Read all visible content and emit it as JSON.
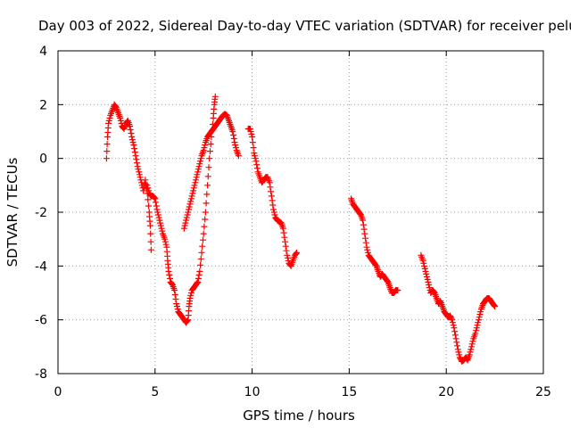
{
  "chart_data": {
    "type": "scatter",
    "title": "Day 003 of 2022, Sidereal Day-to-day VTEC variation (SDTVAR) for receiver pelu",
    "xlabel": "GPS time / hours",
    "ylabel": "SDTVAR / TECUs",
    "xlim": [
      0,
      25
    ],
    "ylim": [
      -8,
      4
    ],
    "xticks": [
      0,
      5,
      10,
      15,
      20,
      25
    ],
    "yticks": [
      -8,
      -6,
      -4,
      -2,
      0,
      2,
      4
    ],
    "grid": true,
    "marker": "+",
    "color": "#ff0000",
    "series": [
      {
        "name": "SDTVAR",
        "segments": [
          [
            [
              2.5,
              0.0
            ],
            [
              2.55,
              0.8
            ],
            [
              2.6,
              1.3
            ],
            [
              2.7,
              1.6
            ],
            [
              2.8,
              1.8
            ],
            [
              2.9,
              2.0
            ],
            [
              3.0,
              1.9
            ],
            [
              3.1,
              1.7
            ],
            [
              3.2,
              1.5
            ],
            [
              3.3,
              1.2
            ],
            [
              3.4,
              1.1
            ],
            [
              3.5,
              1.3
            ],
            [
              3.6,
              1.4
            ],
            [
              3.7,
              1.2
            ],
            [
              3.8,
              0.8
            ],
            [
              3.9,
              0.5
            ],
            [
              4.0,
              0.1
            ],
            [
              4.1,
              -0.3
            ],
            [
              4.2,
              -0.6
            ],
            [
              4.3,
              -0.9
            ],
            [
              4.4,
              -1.2
            ],
            [
              4.5,
              -0.8
            ],
            [
              4.6,
              -1.3
            ],
            [
              4.7,
              -2.0
            ],
            [
              4.75,
              -2.5
            ],
            [
              4.8,
              -3.4
            ]
          ],
          [
            [
              4.6,
              -1.0
            ],
            [
              4.7,
              -1.3
            ],
            [
              4.8,
              -1.4
            ],
            [
              4.9,
              -1.4
            ],
            [
              5.0,
              -1.5
            ],
            [
              5.1,
              -1.9
            ],
            [
              5.2,
              -2.2
            ],
            [
              5.3,
              -2.5
            ],
            [
              5.4,
              -2.8
            ],
            [
              5.5,
              -3.0
            ],
            [
              5.6,
              -3.3
            ],
            [
              5.65,
              -3.8
            ],
            [
              5.7,
              -4.2
            ],
            [
              5.8,
              -4.6
            ],
            [
              5.9,
              -4.7
            ],
            [
              6.0,
              -4.9
            ],
            [
              6.1,
              -5.4
            ],
            [
              6.2,
              -5.7
            ],
            [
              6.3,
              -5.8
            ],
            [
              6.4,
              -5.9
            ],
            [
              6.5,
              -6.0
            ],
            [
              6.6,
              -6.1
            ],
            [
              6.7,
              -6.0
            ],
            [
              6.75,
              -5.5
            ],
            [
              6.8,
              -5.2
            ],
            [
              6.9,
              -4.9
            ],
            [
              7.0,
              -4.8
            ],
            [
              7.1,
              -4.7
            ],
            [
              7.2,
              -4.6
            ],
            [
              7.3,
              -4.2
            ],
            [
              7.4,
              -3.5
            ],
            [
              7.5,
              -2.8
            ],
            [
              7.6,
              -2.0
            ],
            [
              7.7,
              -1.0
            ],
            [
              7.8,
              0.0
            ],
            [
              7.9,
              0.8
            ],
            [
              8.0,
              1.5
            ],
            [
              8.05,
              2.0
            ],
            [
              8.1,
              2.3
            ]
          ],
          [
            [
              6.5,
              -2.6
            ],
            [
              6.6,
              -2.3
            ],
            [
              6.7,
              -2.0
            ],
            [
              6.8,
              -1.7
            ],
            [
              6.9,
              -1.4
            ],
            [
              7.0,
              -1.1
            ],
            [
              7.1,
              -0.8
            ],
            [
              7.2,
              -0.5
            ],
            [
              7.3,
              -0.2
            ],
            [
              7.4,
              0.1
            ],
            [
              7.5,
              0.3
            ],
            [
              7.6,
              0.6
            ],
            [
              7.7,
              0.8
            ],
            [
              7.8,
              0.9
            ],
            [
              7.9,
              1.0
            ],
            [
              8.0,
              1.1
            ],
            [
              8.1,
              1.2
            ],
            [
              8.2,
              1.3
            ],
            [
              8.3,
              1.4
            ],
            [
              8.4,
              1.5
            ],
            [
              8.5,
              1.6
            ],
            [
              8.6,
              1.65
            ],
            [
              8.7,
              1.6
            ],
            [
              8.8,
              1.4
            ],
            [
              8.9,
              1.2
            ],
            [
              9.0,
              1.0
            ],
            [
              9.1,
              0.6
            ],
            [
              9.2,
              0.3
            ],
            [
              9.3,
              0.1
            ]
          ],
          [
            [
              9.8,
              1.1
            ],
            [
              9.9,
              1.1
            ],
            [
              10.0,
              0.8
            ],
            [
              10.1,
              0.2
            ],
            [
              10.2,
              -0.1
            ],
            [
              10.3,
              -0.5
            ],
            [
              10.4,
              -0.7
            ],
            [
              10.5,
              -0.9
            ],
            [
              10.6,
              -0.8
            ],
            [
              10.7,
              -0.7
            ],
            [
              10.8,
              -0.7
            ],
            [
              10.9,
              -0.9
            ],
            [
              11.0,
              -1.4
            ],
            [
              11.1,
              -1.9
            ],
            [
              11.2,
              -2.2
            ],
            [
              11.3,
              -2.3
            ],
            [
              11.4,
              -2.35
            ],
            [
              11.5,
              -2.4
            ],
            [
              11.6,
              -2.6
            ],
            [
              11.7,
              -3.1
            ],
            [
              11.8,
              -3.6
            ],
            [
              11.9,
              -3.9
            ],
            [
              12.0,
              -4.0
            ],
            [
              12.1,
              -3.8
            ],
            [
              12.2,
              -3.6
            ],
            [
              12.3,
              -3.5
            ]
          ],
          [
            [
              15.1,
              -1.5
            ],
            [
              15.2,
              -1.7
            ],
            [
              15.3,
              -1.8
            ],
            [
              15.4,
              -1.9
            ],
            [
              15.5,
              -2.0
            ],
            [
              15.6,
              -2.1
            ],
            [
              15.7,
              -2.3
            ],
            [
              15.8,
              -2.8
            ],
            [
              15.9,
              -3.3
            ],
            [
              16.0,
              -3.6
            ],
            [
              16.1,
              -3.7
            ],
            [
              16.2,
              -3.8
            ],
            [
              16.3,
              -3.9
            ],
            [
              16.4,
              -4.0
            ],
            [
              16.5,
              -4.2
            ],
            [
              16.6,
              -4.4
            ],
            [
              16.7,
              -4.3
            ],
            [
              16.8,
              -4.4
            ],
            [
              16.9,
              -4.5
            ],
            [
              17.0,
              -4.6
            ],
            [
              17.1,
              -4.8
            ],
            [
              17.2,
              -5.0
            ],
            [
              17.3,
              -5.0
            ],
            [
              17.4,
              -4.9
            ],
            [
              17.5,
              -4.9
            ]
          ],
          [
            [
              18.7,
              -3.6
            ],
            [
              18.8,
              -3.8
            ],
            [
              18.9,
              -4.1
            ],
            [
              19.0,
              -4.4
            ],
            [
              19.1,
              -4.7
            ],
            [
              19.2,
              -5.0
            ],
            [
              19.3,
              -4.9
            ],
            [
              19.4,
              -5.0
            ],
            [
              19.5,
              -5.2
            ],
            [
              19.6,
              -5.4
            ],
            [
              19.7,
              -5.3
            ],
            [
              19.8,
              -5.5
            ],
            [
              19.9,
              -5.7
            ],
            [
              20.0,
              -5.8
            ],
            [
              20.1,
              -5.9
            ],
            [
              20.2,
              -5.85
            ],
            [
              20.3,
              -6.0
            ],
            [
              20.4,
              -6.3
            ],
            [
              20.5,
              -6.7
            ],
            [
              20.6,
              -7.1
            ],
            [
              20.7,
              -7.4
            ],
            [
              20.8,
              -7.55
            ],
            [
              20.9,
              -7.5
            ],
            [
              21.0,
              -7.4
            ],
            [
              21.1,
              -7.5
            ],
            [
              21.2,
              -7.3
            ],
            [
              21.3,
              -7.0
            ],
            [
              21.4,
              -6.7
            ],
            [
              21.5,
              -6.5
            ],
            [
              21.6,
              -6.2
            ],
            [
              21.7,
              -5.9
            ],
            [
              21.8,
              -5.6
            ],
            [
              21.9,
              -5.4
            ],
            [
              22.0,
              -5.3
            ],
            [
              22.1,
              -5.2
            ],
            [
              22.2,
              -5.2
            ],
            [
              22.3,
              -5.3
            ],
            [
              22.4,
              -5.4
            ],
            [
              22.5,
              -5.5
            ]
          ]
        ]
      }
    ]
  }
}
